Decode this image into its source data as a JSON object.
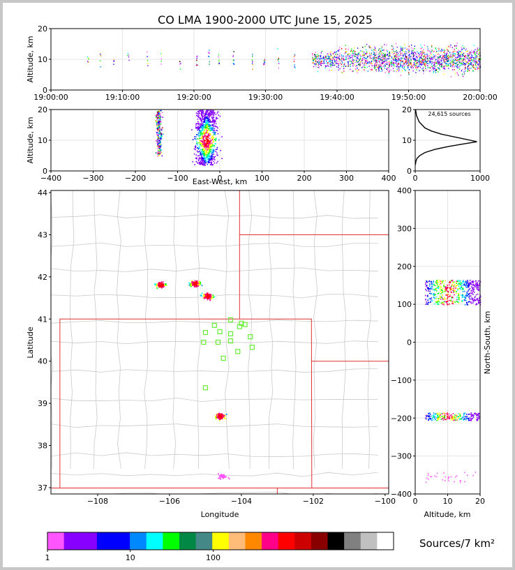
{
  "chart_data": [
    {
      "id": "time-altitude",
      "type": "scatter",
      "title": "CO LMA 1900-2000 UTC June 15, 2025",
      "xlabel": "",
      "ylabel": "Altitude, km",
      "x_ticks": [
        "19:00:00",
        "19:10:00",
        "19:20:00",
        "19:30:00",
        "19:40:00",
        "19:50:00",
        "20:00:00"
      ],
      "xlim_minutes": [
        0,
        60
      ],
      "ylim": [
        0,
        20
      ],
      "y_ticks": [
        "0",
        "10",
        "20"
      ]
    },
    {
      "id": "ew-altitude",
      "type": "scatter",
      "xlabel": "East-West, km",
      "ylabel": "Altitude, km",
      "xlim": [
        -400,
        400
      ],
      "x_ticks": [
        "−400",
        "−300",
        "−200",
        "−100",
        "0",
        "100",
        "200",
        "300",
        "400"
      ],
      "ylim": [
        0,
        20
      ],
      "y_ticks": [
        "0",
        "10",
        "20"
      ],
      "clusters": [
        {
          "x": [
            -155,
            -135
          ],
          "alt": [
            5,
            20
          ]
        },
        {
          "x": [
            -70,
            5
          ],
          "alt": [
            2,
            20
          ]
        }
      ]
    },
    {
      "id": "altitude-histogram",
      "type": "line",
      "annotation": "24,615 sources",
      "xlim": [
        0,
        1000
      ],
      "x_ticks": [
        "0",
        "1000"
      ],
      "ylim": [
        0,
        20
      ],
      "y_ticks": [
        "0",
        "10",
        "20"
      ],
      "profile": [
        [
          20,
          5
        ],
        [
          18,
          20
        ],
        [
          16,
          60
        ],
        [
          14,
          150
        ],
        [
          13,
          250
        ],
        [
          12,
          400
        ],
        [
          11,
          620
        ],
        [
          10,
          850
        ],
        [
          9.5,
          950
        ],
        [
          9,
          800
        ],
        [
          8,
          520
        ],
        [
          7,
          300
        ],
        [
          6,
          150
        ],
        [
          5,
          70
        ],
        [
          4,
          25
        ],
        [
          3,
          10
        ],
        [
          2,
          3
        ]
      ]
    },
    {
      "id": "plan-view",
      "type": "scatter",
      "xlabel": "Longitude",
      "ylabel": "Latitude",
      "xlim": [
        -109.3,
        -99.9
      ],
      "x_ticks": [
        "−108",
        "−106",
        "−104",
        "−102",
        "−100"
      ],
      "ylim": [
        36.85,
        44.05
      ],
      "y_ticks": [
        "37",
        "38",
        "39",
        "40",
        "41",
        "42",
        "43",
        "44"
      ],
      "clusters": [
        {
          "lon": -106.25,
          "lat": 41.82
        },
        {
          "lon": -105.3,
          "lat": 41.85
        },
        {
          "lon": -104.95,
          "lat": 41.55
        },
        {
          "lon": -104.6,
          "lat": 38.7
        },
        {
          "lon": -104.55,
          "lat": 37.28
        }
      ],
      "stations": [
        [
          -104.3,
          40.98
        ],
        [
          -104.0,
          40.9
        ],
        [
          -103.9,
          40.87
        ],
        [
          -104.75,
          40.85
        ],
        [
          -104.05,
          40.82
        ],
        [
          -105.0,
          40.68
        ],
        [
          -104.6,
          40.7
        ],
        [
          -104.3,
          40.65
        ],
        [
          -103.75,
          40.58
        ],
        [
          -105.05,
          40.45
        ],
        [
          -104.65,
          40.45
        ],
        [
          -104.3,
          40.48
        ],
        [
          -103.7,
          40.33
        ],
        [
          -104.1,
          40.23
        ],
        [
          -104.5,
          40.07
        ],
        [
          -105.0,
          39.37
        ]
      ]
    },
    {
      "id": "altitude-ns",
      "type": "scatter",
      "xlabel": "Altitude, km",
      "ylabel": "North-South, km",
      "xlim": [
        0,
        20
      ],
      "x_ticks": [
        "0",
        "10",
        "20"
      ],
      "ylim": [
        -400,
        400
      ],
      "y_ticks": [
        "−400",
        "−300",
        "−200",
        "−100",
        "0",
        "100",
        "200",
        "300",
        "400"
      ],
      "clusters": [
        {
          "ns": [
            140,
            165
          ]
        },
        {
          "ns": [
            100,
            140
          ]
        },
        {
          "ns": [
            -205,
            -185
          ]
        },
        {
          "ns": [
            -370,
            -340
          ]
        }
      ]
    }
  ],
  "colorbar": {
    "label": "Sources/7 km²",
    "tick_labels": [
      "1",
      "10",
      "100"
    ],
    "colors": [
      "#ff55ff",
      "#8800ff",
      "#8800ff",
      "#0000ff",
      "#0000ff",
      "#0088ff",
      "#00ffff",
      "#00ff00",
      "#008844",
      "#448888",
      "#ffff00",
      "#ffbb77",
      "#ff8800",
      "#ff0088",
      "#ff0000",
      "#cc0000",
      "#880000",
      "#000000",
      "#808080",
      "#c0c0c0",
      "#ffffff"
    ]
  },
  "palette": [
    "#ff55ff",
    "#8800ff",
    "#0000ff",
    "#0088ff",
    "#00ffff",
    "#00ff00",
    "#008844",
    "#ffff00",
    "#ff8800",
    "#ff0088",
    "#ff0000",
    "#cc0000",
    "#880000",
    "#000000"
  ]
}
